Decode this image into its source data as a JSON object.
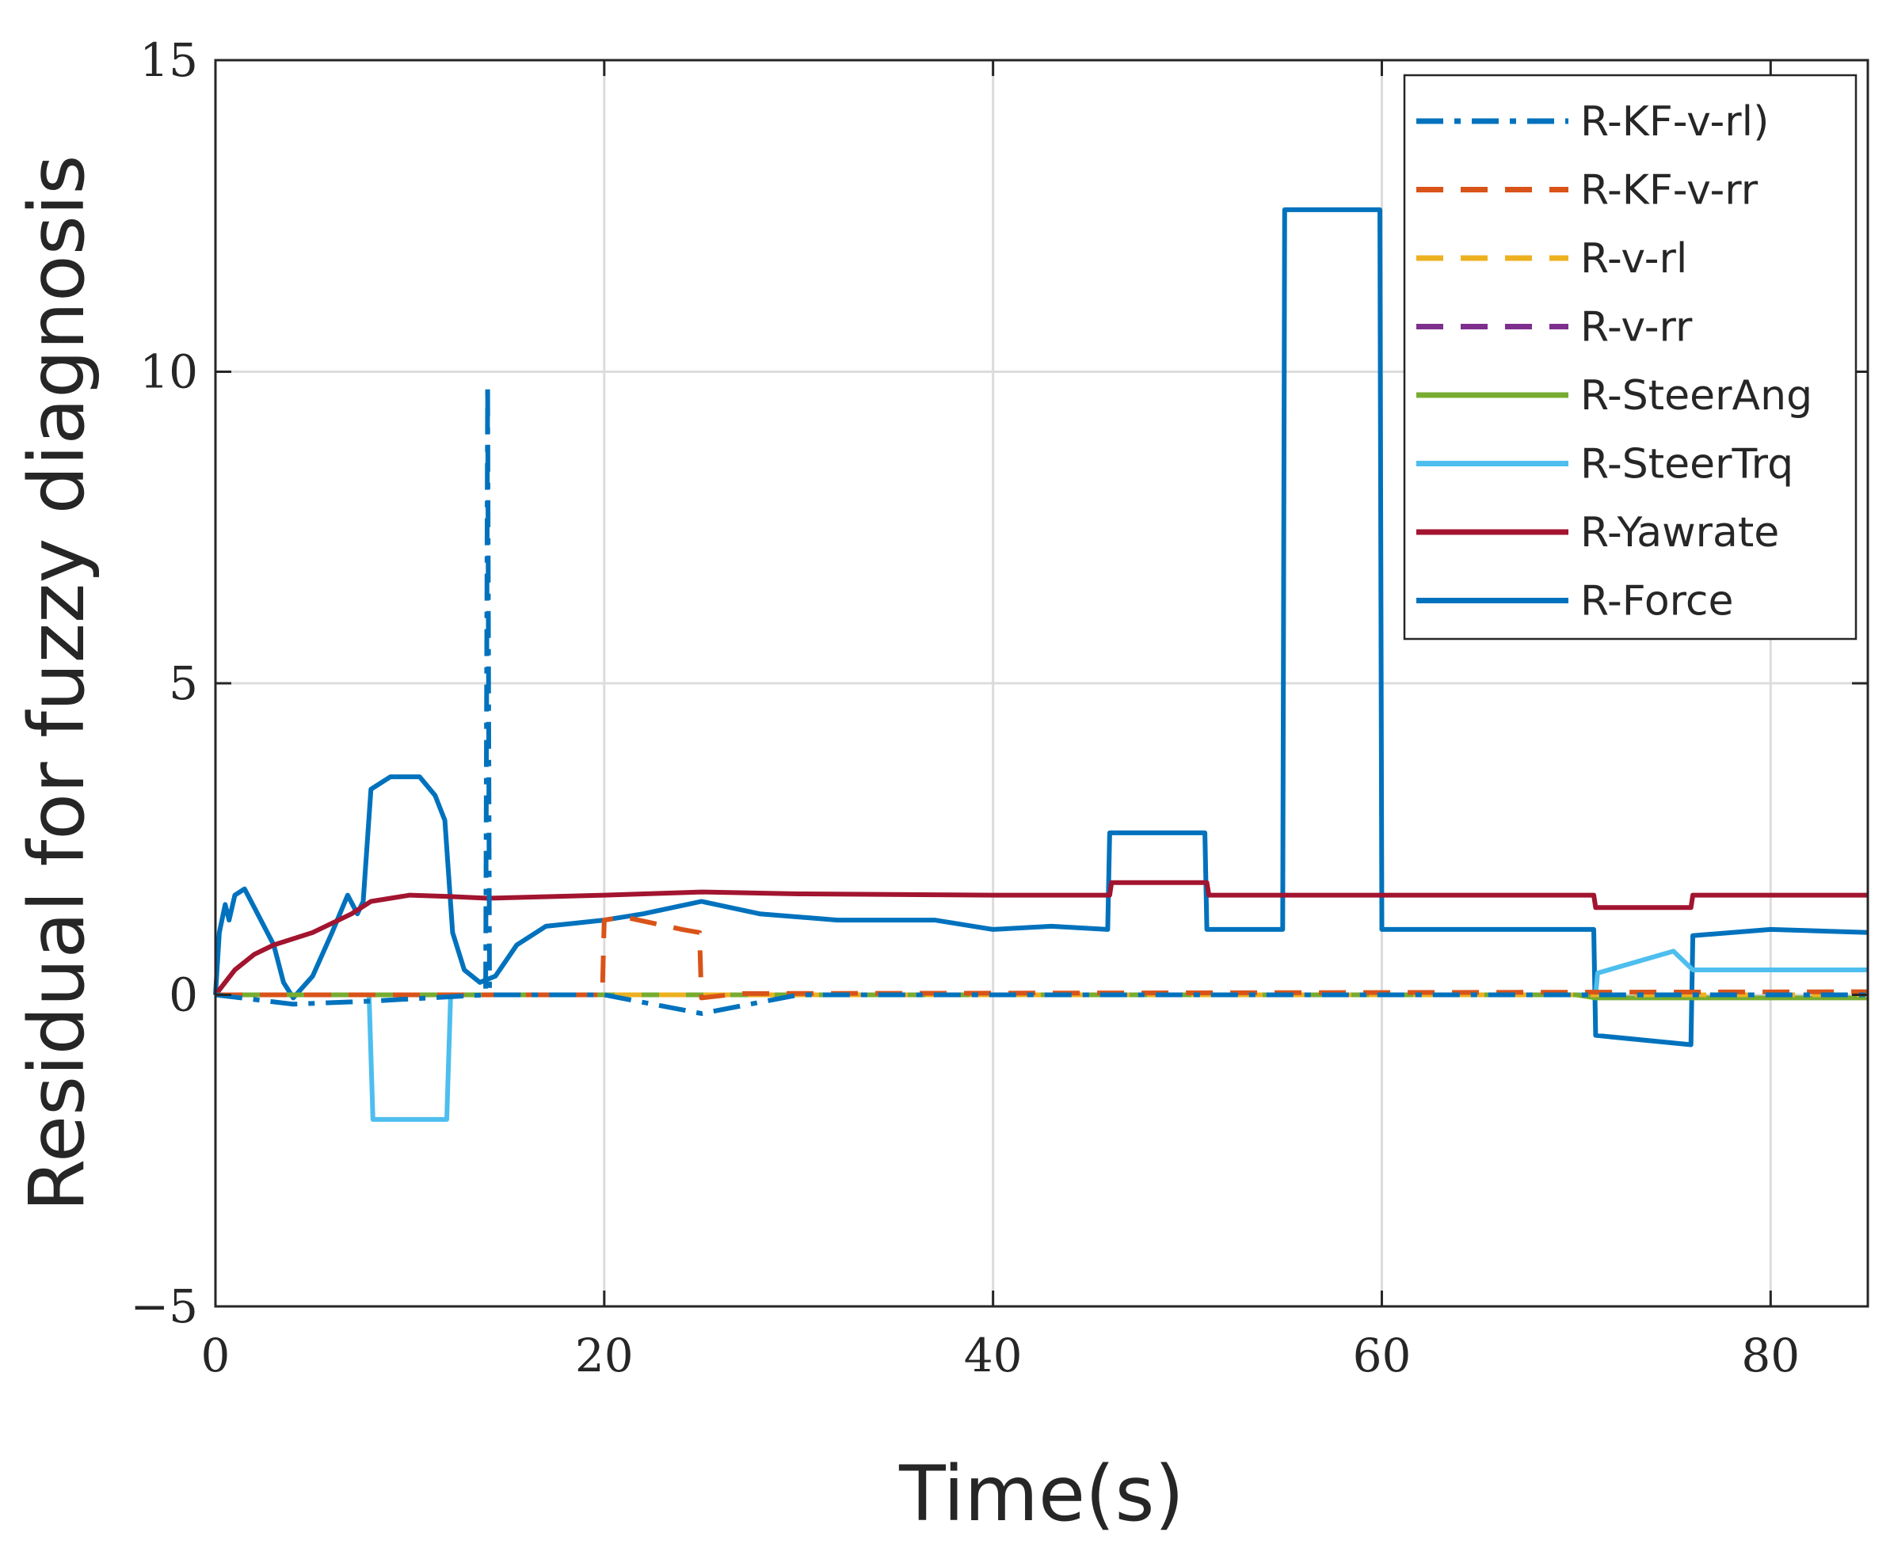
{
  "chart_data": {
    "type": "line",
    "title": "",
    "xlabel": "Time(s)",
    "ylabel": "Residual for fuzzy diagnosis",
    "xlim": [
      0,
      85
    ],
    "ylim": [
      -5,
      15
    ],
    "xticks": [
      0,
      20,
      40,
      60,
      80
    ],
    "yticks": [
      -5,
      0,
      5,
      10,
      15
    ],
    "xtick_labels": [
      "0",
      "20",
      "40",
      "60",
      "80"
    ],
    "ytick_labels": [
      "−5",
      "0",
      "5",
      "10",
      "15"
    ],
    "grid": true,
    "legend_position": "top-right",
    "series": [
      {
        "name": "R-KF-v-rl)",
        "color": "#0072BD",
        "dash": "dashdot",
        "points": [
          [
            0,
            0
          ],
          [
            4,
            -0.15
          ],
          [
            8,
            -0.1
          ],
          [
            13.9,
            0
          ],
          [
            14,
            9.8
          ],
          [
            14.1,
            0
          ],
          [
            20,
            0
          ],
          [
            25,
            -0.3
          ],
          [
            30,
            0
          ],
          [
            85,
            0
          ]
        ]
      },
      {
        "name": "R-KF-v-rr",
        "color": "#D95319",
        "dash": "dash",
        "points": [
          [
            0,
            0
          ],
          [
            19.9,
            0
          ],
          [
            20,
            1.2
          ],
          [
            21,
            1.25
          ],
          [
            24,
            1.05
          ],
          [
            24.9,
            1.0
          ],
          [
            25,
            -0.05
          ],
          [
            27,
            0.02
          ],
          [
            85,
            0.05
          ]
        ]
      },
      {
        "name": "R-v-rl",
        "color": "#EDB120",
        "dash": "dash",
        "points": [
          [
            0,
            0
          ],
          [
            85,
            0
          ]
        ]
      },
      {
        "name": "R-v-rr",
        "color": "#7E2F8E",
        "dash": "dash",
        "points": [
          [
            0,
            0
          ],
          [
            85,
            0
          ]
        ]
      },
      {
        "name": "R-SteerAng",
        "color": "#77AC30",
        "dash": "solid",
        "points": [
          [
            0,
            0
          ],
          [
            70,
            0
          ],
          [
            71,
            -0.05
          ],
          [
            76,
            -0.05
          ],
          [
            85,
            -0.05
          ]
        ]
      },
      {
        "name": "R-SteerTrq",
        "color": "#4DBEEE",
        "dash": "solid",
        "points": [
          [
            0,
            0
          ],
          [
            7.9,
            0
          ],
          [
            8.1,
            -2.0
          ],
          [
            11.9,
            -2.0
          ],
          [
            12.1,
            0
          ],
          [
            71,
            0
          ],
          [
            71.1,
            0.35
          ],
          [
            75,
            0.7
          ],
          [
            76,
            0.4
          ],
          [
            85,
            0.4
          ]
        ]
      },
      {
        "name": "R-Yawrate",
        "color": "#A2142F",
        "dash": "solid",
        "points": [
          [
            0,
            0
          ],
          [
            1,
            0.4
          ],
          [
            2,
            0.65
          ],
          [
            3,
            0.8
          ],
          [
            5,
            1.0
          ],
          [
            7,
            1.3
          ],
          [
            8,
            1.5
          ],
          [
            10,
            1.6
          ],
          [
            12,
            1.58
          ],
          [
            14,
            1.55
          ],
          [
            20,
            1.6
          ],
          [
            25,
            1.65
          ],
          [
            30,
            1.62
          ],
          [
            40,
            1.6
          ],
          [
            46,
            1.6
          ],
          [
            46.1,
            1.8
          ],
          [
            51,
            1.8
          ],
          [
            51.1,
            1.6
          ],
          [
            70,
            1.6
          ],
          [
            70.9,
            1.6
          ],
          [
            71,
            1.4
          ],
          [
            75.9,
            1.4
          ],
          [
            76,
            1.6
          ],
          [
            85,
            1.6
          ]
        ]
      },
      {
        "name": "R-Force",
        "color": "#0072BD",
        "dash": "solid",
        "points": [
          [
            0,
            0
          ],
          [
            0.2,
            1.0
          ],
          [
            0.5,
            1.45
          ],
          [
            0.7,
            1.2
          ],
          [
            1,
            1.6
          ],
          [
            1.5,
            1.7
          ],
          [
            2,
            1.4
          ],
          [
            3,
            0.8
          ],
          [
            3.5,
            0.2
          ],
          [
            4,
            -0.05
          ],
          [
            5,
            0.3
          ],
          [
            6,
            1.0
          ],
          [
            6.8,
            1.6
          ],
          [
            7.3,
            1.3
          ],
          [
            7.6,
            1.5
          ],
          [
            8,
            3.3
          ],
          [
            9,
            3.5
          ],
          [
            10.5,
            3.5
          ],
          [
            11.3,
            3.2
          ],
          [
            11.8,
            2.8
          ],
          [
            12.2,
            1.0
          ],
          [
            12.8,
            0.4
          ],
          [
            13.6,
            0.2
          ],
          [
            14.4,
            0.3
          ],
          [
            15.5,
            0.8
          ],
          [
            17,
            1.1
          ],
          [
            20,
            1.2
          ],
          [
            22,
            1.3
          ],
          [
            25,
            1.5
          ],
          [
            28,
            1.3
          ],
          [
            32,
            1.2
          ],
          [
            37,
            1.2
          ],
          [
            40,
            1.05
          ],
          [
            43,
            1.1
          ],
          [
            45.9,
            1.05
          ],
          [
            46,
            2.6
          ],
          [
            50.9,
            2.6
          ],
          [
            51,
            1.05
          ],
          [
            54.9,
            1.05
          ],
          [
            55,
            12.6
          ],
          [
            59.9,
            12.6
          ],
          [
            60,
            1.05
          ],
          [
            70.9,
            1.05
          ],
          [
            71,
            -0.65
          ],
          [
            75.9,
            -0.8
          ],
          [
            76,
            0.95
          ],
          [
            80,
            1.05
          ],
          [
            85,
            1.0
          ]
        ]
      }
    ]
  }
}
